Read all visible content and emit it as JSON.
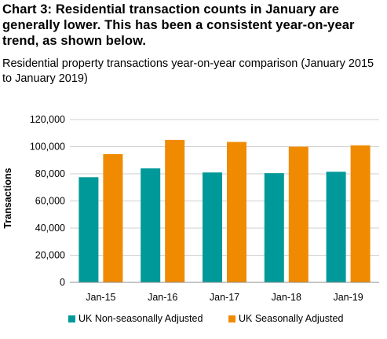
{
  "header": {
    "heading": "Chart 3: Residential transaction counts in January are generally lower. This has been a consistent year-on-year trend, as shown below.",
    "subtitle": "Residential property transactions year-on-year comparison (January 2015 to January 2019)"
  },
  "chart_data": {
    "type": "bar",
    "title": "Residential property transactions year-on-year comparison (January 2015 to January 2019)",
    "xlabel": "",
    "ylabel": "Transactions",
    "categories": [
      "Jan-15",
      "Jan-16",
      "Jan-17",
      "Jan-18",
      "Jan-19"
    ],
    "series": [
      {
        "name": "UK Non-seasonally Adjusted",
        "color": "#009999",
        "values": [
          77500,
          84000,
          81000,
          80500,
          81500
        ]
      },
      {
        "name": "UK Seasonally Adjusted",
        "color": "#f08a00",
        "values": [
          94500,
          105000,
          103500,
          100000,
          101000
        ]
      }
    ],
    "ylim": [
      0,
      120000
    ],
    "yticks": [
      0,
      20000,
      40000,
      60000,
      80000,
      100000,
      120000
    ],
    "ytick_labels": [
      "0",
      "20,000",
      "40,000",
      "60,000",
      "80,000",
      "100,000",
      "120,000"
    ],
    "grid": true,
    "legend_position": "bottom"
  }
}
